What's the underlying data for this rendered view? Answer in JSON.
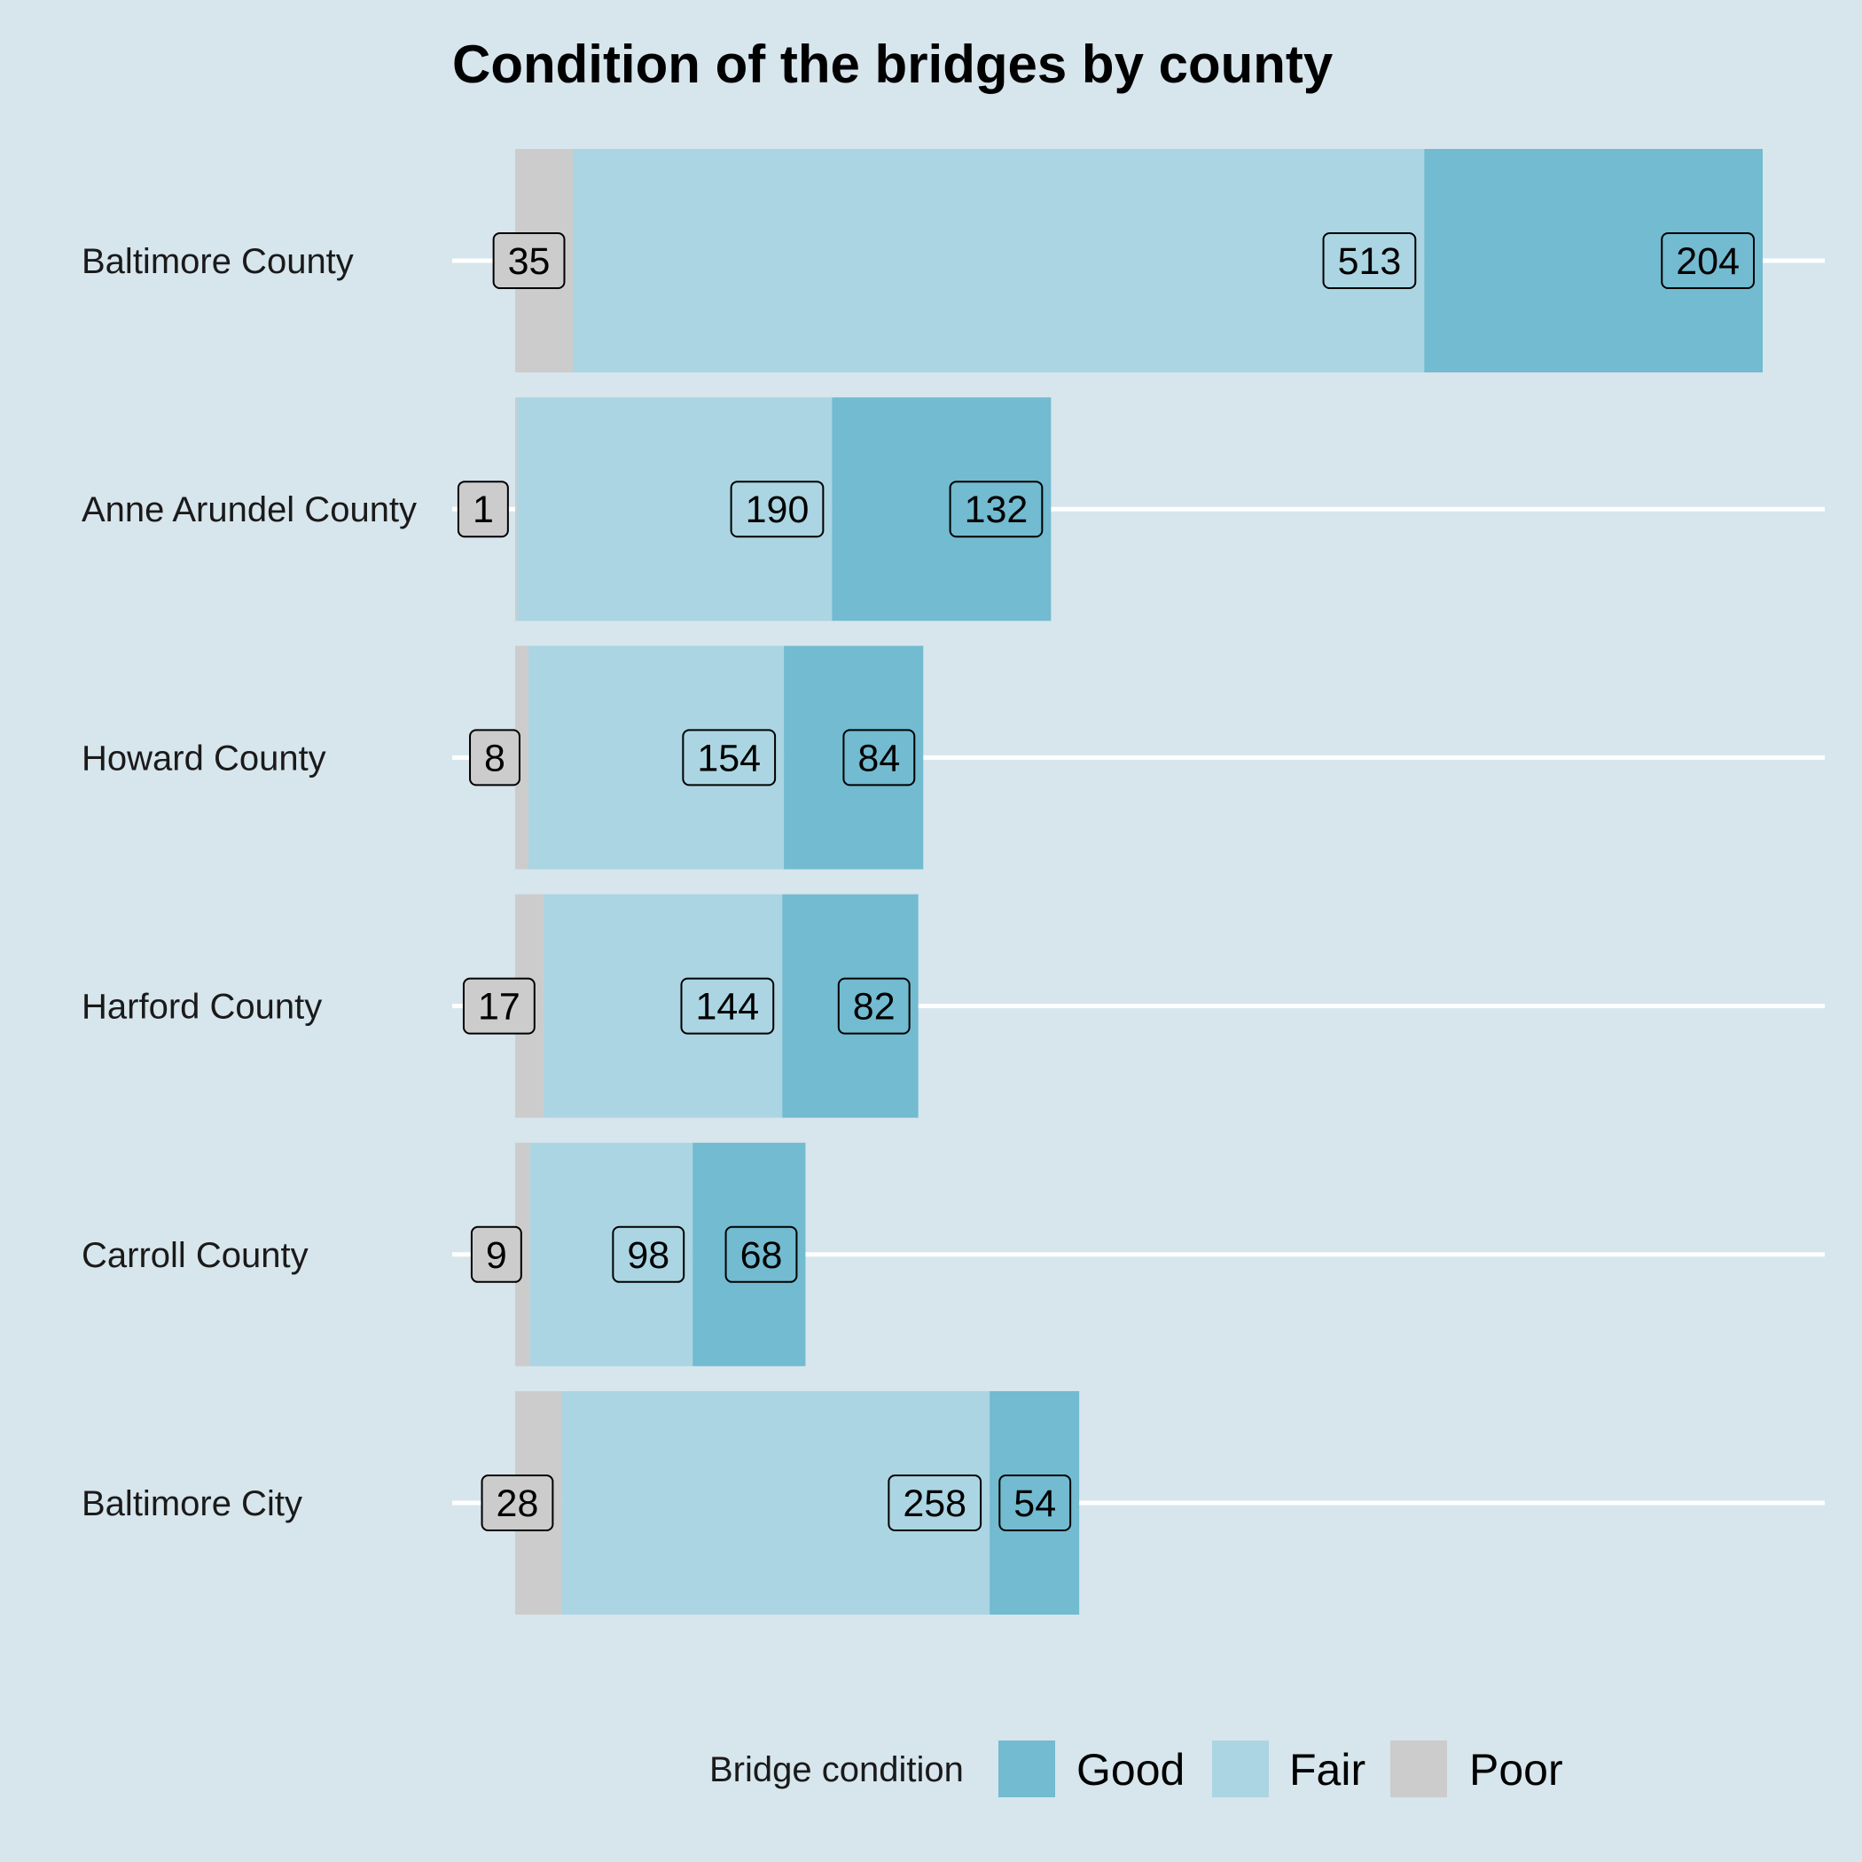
{
  "chart_data": {
    "type": "bar",
    "orientation": "horizontal",
    "stacked": true,
    "title": "Condition of the bridges by county",
    "xlabel": "",
    "ylabel": "",
    "grid": true,
    "axis_ticks_shown": false,
    "categories": [
      "Baltimore County",
      "Anne Arundel County",
      "Howard County",
      "Harford County",
      "Carroll County",
      "Baltimore City"
    ],
    "series": [
      {
        "name": "Poor",
        "color": "#cccccc",
        "values": [
          35,
          1,
          8,
          17,
          9,
          28
        ]
      },
      {
        "name": "Fair",
        "color": "#abd5e2",
        "values": [
          513,
          190,
          154,
          144,
          98,
          258
        ]
      },
      {
        "name": "Good",
        "color": "#72bbd0",
        "values": [
          204,
          132,
          84,
          82,
          68,
          54
        ]
      }
    ],
    "xlim": [
      0,
      752
    ],
    "legend": {
      "title": "Bridge condition",
      "position": "bottom",
      "items": [
        "Good",
        "Fair",
        "Poor"
      ]
    }
  }
}
